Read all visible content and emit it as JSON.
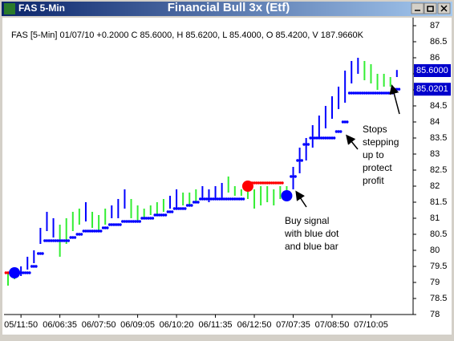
{
  "window_title": "FAS 5-Min",
  "chart_data": {
    "type": "hlc",
    "title": "Financial Bull 3x (Etf)",
    "info": "FAS [5-Min] 01/07/10 +0.2000 C 85.6000, H 85.6200, L 85.4000, O 85.4200, V 187.9660K",
    "categories": [
      null,
      null,
      "05/11:50",
      null,
      null,
      null,
      null,
      null,
      "06/06:35",
      null,
      null,
      null,
      null,
      null,
      "06/07:50",
      null,
      null,
      null,
      null,
      null,
      "06/09:05",
      null,
      null,
      null,
      null,
      null,
      "06/10:20",
      null,
      null,
      null,
      null,
      null,
      "06/11:35",
      null,
      null,
      null,
      null,
      null,
      "06/12:50",
      null,
      null,
      null,
      null,
      null,
      "07/07:35",
      null,
      null,
      null,
      null,
      null,
      "07/08:50",
      null,
      null,
      null,
      null,
      null,
      "07/10:05",
      null,
      null,
      null,
      null
    ],
    "high": [
      79.3,
      79.4,
      79.5,
      79.8,
      80.0,
      80.7,
      81.2,
      81.0,
      80.8,
      81.0,
      81.2,
      81.3,
      81.5,
      81.2,
      81.1,
      81.3,
      81.4,
      81.6,
      81.9,
      81.6,
      81.4,
      81.3,
      81.4,
      81.5,
      81.6,
      81.7,
      81.9,
      81.8,
      81.8,
      81.9,
      82.0,
      81.9,
      82.0,
      82.1,
      82.3,
      82.0,
      81.9,
      82.1,
      81.9,
      82.0,
      82.0,
      81.9,
      82.0,
      82.0,
      82.6,
      83.2,
      83.5,
      83.9,
      84.2,
      84.5,
      84.8,
      85.1,
      85.6,
      85.9,
      86.0,
      85.9,
      85.8,
      85.5,
      85.5,
      85.4,
      85.62
    ],
    "low": [
      78.9,
      79.1,
      79.2,
      79.4,
      79.6,
      80.2,
      80.6,
      80.4,
      79.8,
      80.2,
      80.6,
      80.8,
      80.9,
      80.7,
      80.6,
      80.8,
      81.0,
      81.0,
      81.3,
      81.0,
      80.9,
      81.0,
      81.1,
      81.1,
      81.2,
      81.3,
      81.3,
      81.4,
      81.4,
      81.5,
      81.6,
      81.5,
      81.6,
      81.6,
      81.8,
      81.7,
      81.7,
      81.6,
      81.3,
      81.4,
      81.5,
      81.4,
      81.6,
      81.6,
      81.9,
      82.4,
      82.8,
      83.2,
      83.5,
      83.8,
      84.1,
      84.4,
      84.6,
      85.2,
      85.5,
      85.3,
      85.2,
      85.0,
      85.1,
      85.1,
      85.4
    ],
    "bar_colors": [
      "#33ee33",
      "#33ee33",
      "#0000ff",
      "#0000ff",
      "#0000ff",
      "#0000ff",
      "#0000ff",
      "#0000ff",
      "#33ee33",
      "#33ee33",
      "#33ee33",
      "#33ee33",
      "#0000ff",
      "#33ee33",
      "#33ee33",
      "#33ee33",
      "#0000ff",
      "#0000ff",
      "#0000ff",
      "#33ee33",
      "#33ee33",
      "#33ee33",
      "#33ee33",
      "#33ee33",
      "#33ee33",
      "#0000ff",
      "#0000ff",
      "#33ee33",
      "#33ee33",
      "#33ee33",
      "#0000ff",
      "#0000ff",
      "#0000ff",
      "#0000ff",
      "#33ee33",
      "#33ee33",
      "#33ee33",
      "#33ee33",
      "#33ee33",
      "#33ee33",
      "#33ee33",
      "#33ee33",
      "#33ee33",
      "#33ee33",
      "#0000ff",
      "#0000ff",
      "#0000ff",
      "#0000ff",
      "#0000ff",
      "#0000ff",
      "#0000ff",
      "#0000ff",
      "#0000ff",
      "#0000ff",
      "#0000ff",
      "#33ee33",
      "#33ee33",
      "#33ee33",
      "#33ee33",
      "#33ee33",
      "#0000ff"
    ],
    "stops": [
      {
        "color": "#ff0000",
        "values": [
          79.3,
          79.3,
          null,
          null,
          null,
          null,
          null,
          null,
          null,
          null,
          null,
          null,
          null,
          null,
          null,
          null,
          null,
          null,
          null,
          null,
          null,
          null,
          null,
          null,
          null,
          null,
          null,
          null,
          null,
          null,
          null,
          null,
          null,
          null,
          null,
          null,
          null,
          82.1,
          82.1,
          82.1,
          82.1,
          82.1,
          82.1,
          null,
          null,
          null,
          null,
          null,
          null,
          null,
          null,
          null,
          null,
          null,
          null,
          null,
          null,
          null,
          null,
          null,
          null
        ]
      },
      {
        "color": "#0000ff",
        "values": [
          null,
          null,
          79.3,
          79.3,
          79.5,
          79.9,
          80.3,
          80.3,
          80.3,
          80.3,
          80.4,
          80.5,
          80.6,
          80.6,
          80.6,
          80.7,
          80.8,
          80.8,
          80.9,
          80.9,
          80.9,
          81.0,
          81.0,
          81.1,
          81.1,
          81.2,
          81.3,
          81.3,
          81.4,
          81.5,
          81.6,
          81.6,
          81.6,
          81.6,
          81.6,
          81.6,
          81.6,
          null,
          null,
          null,
          null,
          null,
          null,
          null,
          82.3,
          82.8,
          83.3,
          83.5,
          83.5,
          83.5,
          83.5,
          83.7,
          84.0,
          84.9,
          84.9,
          84.9,
          84.9,
          84.9,
          84.9,
          84.9,
          85.02
        ]
      }
    ],
    "signals": [
      {
        "color": "#0000ff",
        "values": [
          null,
          79.3,
          null,
          null,
          null,
          null,
          null,
          null,
          null,
          null,
          null,
          null,
          null,
          null,
          null,
          null,
          null,
          null,
          null,
          null,
          null,
          null,
          null,
          null,
          null,
          null,
          null,
          null,
          null,
          null,
          null,
          null,
          null,
          null,
          null,
          null,
          null,
          null,
          null,
          null,
          null,
          null,
          null,
          81.7,
          null,
          null,
          null,
          null,
          null,
          null,
          null,
          null,
          null,
          null,
          null,
          null,
          null,
          null,
          null,
          null,
          null
        ]
      },
      {
        "color": "#ff0000",
        "values": [
          null,
          null,
          null,
          null,
          null,
          null,
          null,
          null,
          null,
          null,
          null,
          null,
          null,
          null,
          null,
          null,
          null,
          null,
          null,
          null,
          null,
          null,
          null,
          null,
          null,
          null,
          null,
          null,
          null,
          null,
          null,
          null,
          null,
          null,
          null,
          null,
          null,
          82.0,
          null,
          null,
          null,
          null,
          null,
          null,
          null,
          null,
          null,
          null,
          null,
          null,
          null,
          null,
          null,
          null,
          null,
          null,
          null,
          null,
          null,
          null,
          null
        ]
      }
    ],
    "price_tags": [
      {
        "value": 85.6,
        "label": "85.6000"
      },
      {
        "value": 85.0201,
        "label": "85.0201"
      }
    ],
    "ylim": [
      78,
      87
    ],
    "yticks": [
      78,
      78.5,
      79,
      79.5,
      80,
      80.5,
      81,
      81.5,
      82,
      82.5,
      83,
      83.5,
      84,
      84.5,
      85,
      85.5,
      86,
      86.5,
      87
    ],
    "annotations": [
      [
        "Stops",
        "stepping",
        "up to",
        "protect",
        "profit"
      ],
      [
        "Buy signal",
        "with blue dot",
        "and blue bar"
      ]
    ]
  }
}
